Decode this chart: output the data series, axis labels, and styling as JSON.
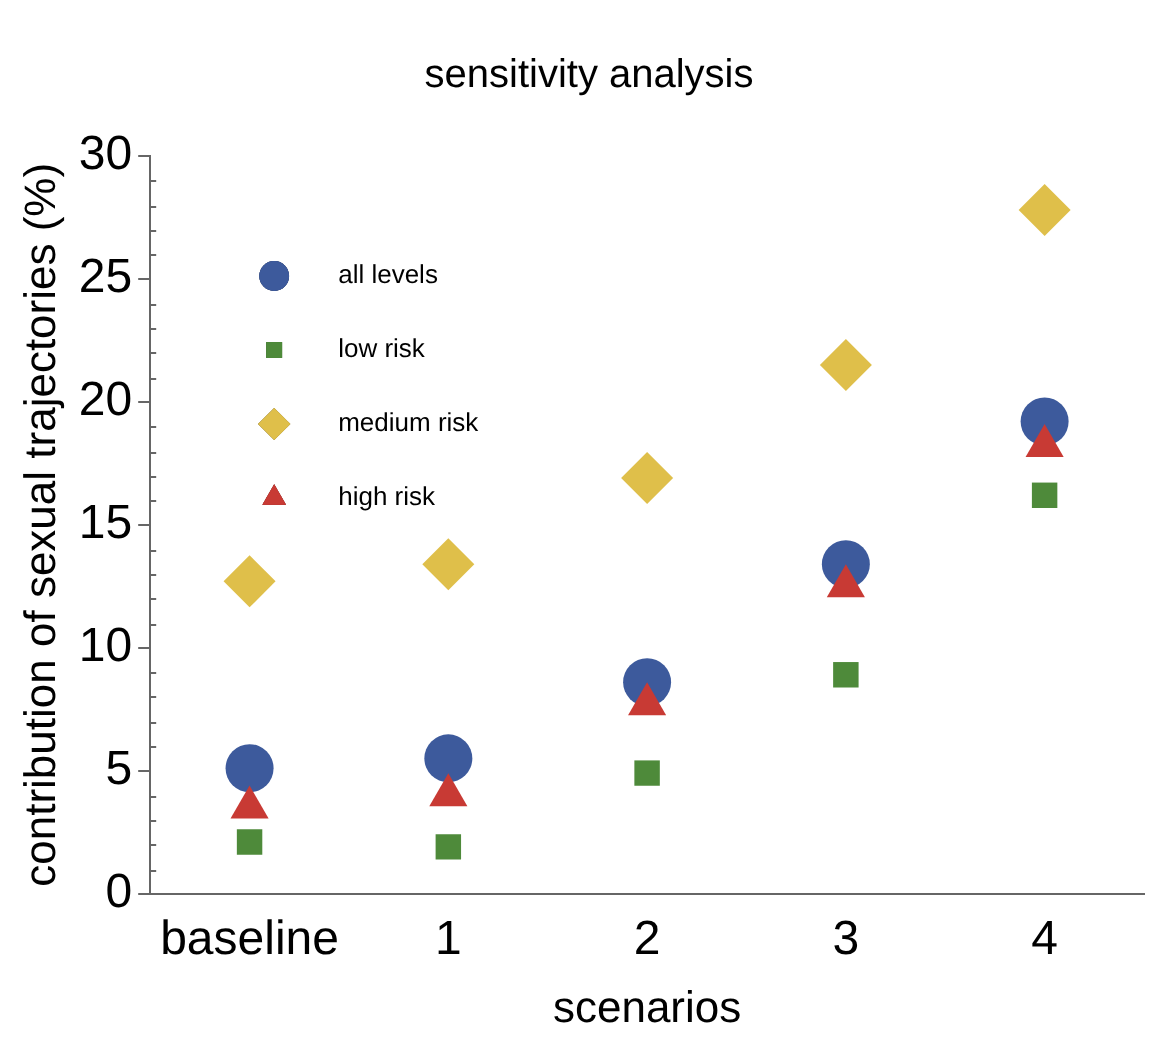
{
  "chart_data": {
    "type": "scatter",
    "title": "sensitivity analysis",
    "xlabel": "scenarios",
    "ylabel": "contribution of sexual trajectories (%)",
    "categories": [
      "baseline",
      "1",
      "2",
      "3",
      "4"
    ],
    "series": [
      {
        "name": "all levels",
        "color": "#3d5a9c",
        "marker": "circle",
        "values": [
          5.1,
          5.5,
          8.6,
          13.4,
          19.2
        ]
      },
      {
        "name": "low risk",
        "color": "#4e8a3a",
        "marker": "square",
        "values": [
          2.1,
          1.9,
          4.9,
          8.9,
          16.2
        ]
      },
      {
        "name": "medium risk",
        "color": "#dfbf4a",
        "marker": "diamond",
        "values": [
          12.7,
          13.4,
          16.9,
          21.5,
          27.8
        ]
      },
      {
        "name": "high risk",
        "color": "#c83a34",
        "marker": "triangle",
        "values": [
          3.5,
          4.0,
          7.7,
          12.5,
          18.2
        ]
      }
    ],
    "ylim": [
      0,
      30
    ],
    "yticks": [
      0,
      5,
      10,
      15,
      20,
      25,
      30
    ],
    "grid": false,
    "legend": "top left"
  }
}
